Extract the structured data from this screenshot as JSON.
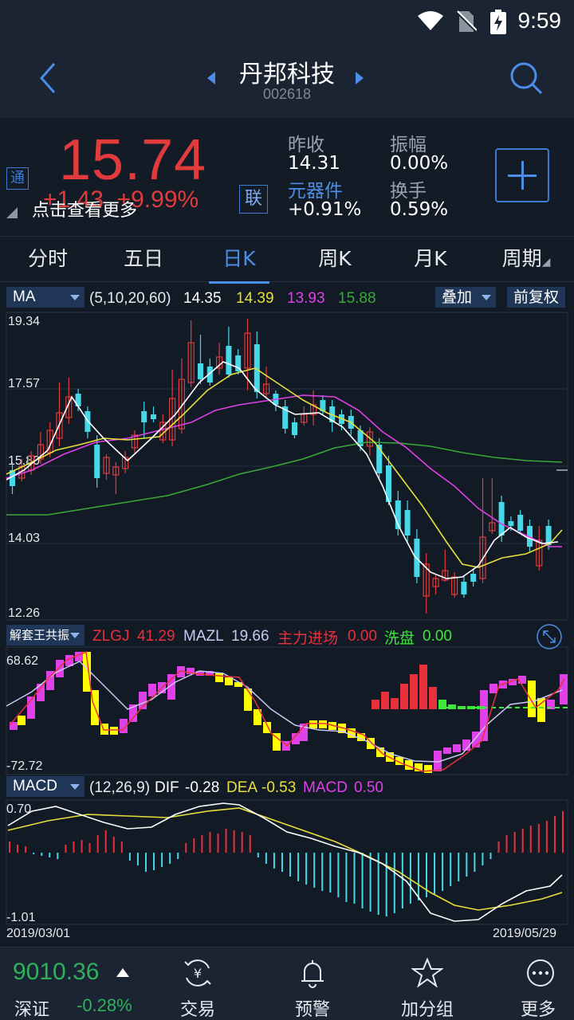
{
  "status_bar": {
    "time": "9:59"
  },
  "header": {
    "stock_name": "丹邦科技",
    "stock_code": "002618"
  },
  "quote": {
    "price": "15.74",
    "change_abs": "+1.43",
    "change_pct": "+9.99%",
    "tip": "点击查看更多",
    "badge_tong": "通",
    "badge_lian": "联",
    "stats": [
      {
        "label": "昨收",
        "value": "14.31"
      },
      {
        "label": "振幅",
        "value": "0.00%"
      },
      {
        "label": "元器件",
        "value": "+0.91%"
      },
      {
        "label": "换手",
        "value": "0.59%"
      }
    ]
  },
  "tabs": [
    "分时",
    "五日",
    "日K",
    "周K",
    "月K",
    "周期"
  ],
  "active_tab": "日K",
  "ma_bar": {
    "selector": "MA",
    "params": "(5,10,20,60)",
    "ma5": "14.35",
    "ma10": "14.39",
    "ma20": "13.93",
    "ma60": "15.88",
    "overlay_btn": "叠加",
    "adjust_btn": "前复权"
  },
  "zlgj_bar": {
    "selector": "解套王共振",
    "zlgj_label": "ZLGJ",
    "zlgj_value": "41.29",
    "mazl_label": "MAZL",
    "mazl_value": "19.66",
    "entry_label": "主力进场",
    "entry_value": "0.00",
    "wash_label": "洗盘",
    "wash_value": "0.00"
  },
  "macd_bar": {
    "selector": "MACD",
    "params": "(12,26,9)",
    "dif_label": "DIF",
    "dif_value": "-0.28",
    "dea_label": "DEA",
    "dea_value": "-0.53",
    "macd_label": "MACD",
    "macd_value": "0.50"
  },
  "price_axis": [
    "19.34",
    "17.57",
    "15.80",
    "14.03",
    "12.26"
  ],
  "zlgj_axis": [
    "68.62",
    "-72.72"
  ],
  "macd_axis": [
    "0.70",
    "-1.01"
  ],
  "date_range": {
    "start": "2019/03/01",
    "end": "2019/05/29"
  },
  "colors": {
    "up": "#e13b3b",
    "down": "#46d8e8",
    "ma5": "#ffffff",
    "ma10": "#e8e03a",
    "ma20": "#e040e8",
    "ma60": "#3aa838",
    "accent": "#4b8de8"
  },
  "bottom": {
    "index_value": "9010.36",
    "index_name": "深证",
    "index_pct": "-0.28%",
    "nav": [
      {
        "label": "交易",
        "icon": "yuan-exchange-icon"
      },
      {
        "label": "预警",
        "icon": "bell-icon"
      },
      {
        "label": "加分组",
        "icon": "star-icon"
      },
      {
        "label": "更多",
        "icon": "more-icon"
      }
    ]
  }
}
